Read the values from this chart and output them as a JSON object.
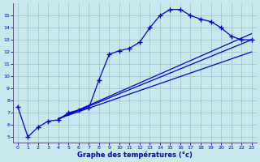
{
  "bg_color": "#c8e8ee",
  "grid_color": "#a0c8d0",
  "line_color": "#0000cc",
  "xlim": [
    -0.5,
    23.5
  ],
  "ylim": [
    4.5,
    16.0
  ],
  "yticks": [
    5,
    6,
    7,
    8,
    9,
    10,
    11,
    12,
    13,
    14,
    15
  ],
  "xticks": [
    0,
    1,
    2,
    3,
    4,
    5,
    6,
    7,
    8,
    9,
    10,
    11,
    12,
    13,
    14,
    15,
    16,
    17,
    18,
    19,
    20,
    21,
    22,
    23
  ],
  "xlabel": "Graphe des températures (°c)",
  "main_line": {
    "x": [
      0,
      1,
      2,
      3,
      4,
      5,
      6,
      7,
      8,
      9,
      10,
      11,
      12,
      13,
      14,
      15,
      16,
      17,
      18,
      19,
      20,
      21,
      22,
      23
    ],
    "y": [
      7.5,
      5.0,
      5.8,
      6.3,
      6.4,
      7.0,
      7.2,
      7.4,
      9.7,
      11.8,
      12.1,
      12.3,
      12.8,
      14.0,
      15.0,
      15.5,
      15.5,
      15.0,
      14.7,
      14.5,
      14.0,
      13.3,
      13.0,
      13.0
    ]
  },
  "aux_lines": [
    {
      "x": [
        4,
        23
      ],
      "y": [
        6.5,
        12.0
      ]
    },
    {
      "x": [
        4,
        23
      ],
      "y": [
        6.5,
        13.0
      ]
    },
    {
      "x": [
        4,
        23
      ],
      "y": [
        6.5,
        13.5
      ]
    }
  ]
}
